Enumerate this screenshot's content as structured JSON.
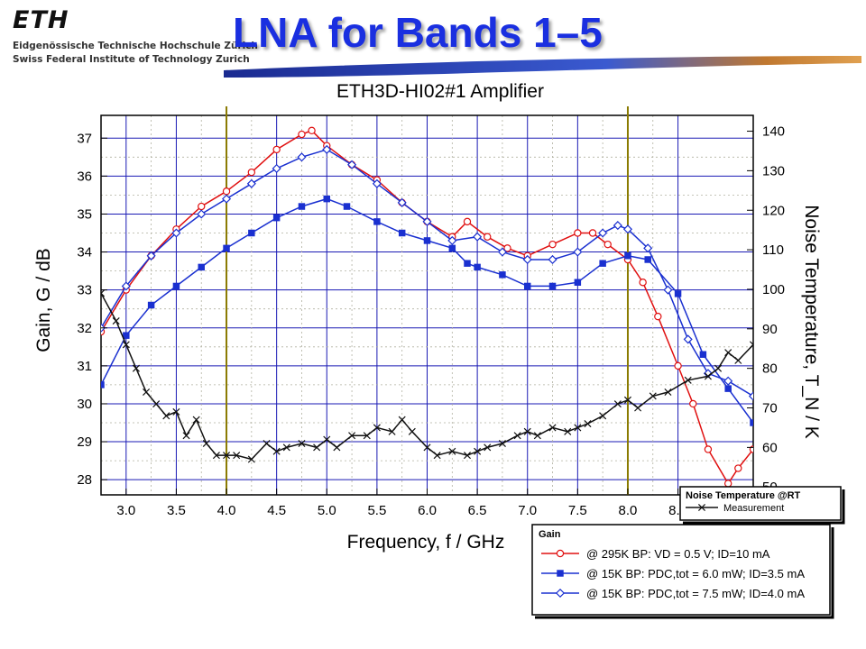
{
  "header": {
    "logo_text": "ETH",
    "institution_line1": "Eidgenössische Technische Hochschule Zürich",
    "institution_line2": "Swiss Federal Institute of Technology Zurich",
    "slide_title": "LNA for Bands 1–5"
  },
  "colors": {
    "title": "#1a2fe0",
    "grid": "#1a1ab4",
    "marker_lines": "#8a7a00",
    "swoosh": "#2a3fb0"
  },
  "chart_data": {
    "type": "line",
    "title": "ETH3D-HI02#1 Amplifier",
    "xlabel": "Frequency, f / GHz",
    "ylabel": "Gain, G / dB",
    "y2label": "Noise Temperature, T_N / K",
    "x_ticks": [
      "3.0",
      "3.5",
      "4.0",
      "4.5",
      "5.0",
      "5.5",
      "6.0",
      "6.5",
      "7.0",
      "7.5",
      "8.0",
      "8.5"
    ],
    "y_ticks": [
      "28",
      "29",
      "30",
      "31",
      "32",
      "33",
      "34",
      "35",
      "36",
      "37"
    ],
    "y2_ticks": [
      "50",
      "60",
      "70",
      "80",
      "90",
      "100",
      "110",
      "120",
      "130",
      "140"
    ],
    "xlim": [
      2.75,
      9.25
    ],
    "ylim": [
      27.6,
      37.6
    ],
    "y2lim": [
      48,
      144
    ],
    "grid": true,
    "band_markers_x": [
      4.0,
      8.0
    ],
    "gain_legend_title": "Gain",
    "noise_legend_title": "Noise Temperature @RT",
    "series": [
      {
        "name": "@ 295K BP: VD = 0.5 V; ID=10 mA",
        "axis": "gain",
        "color": "#e01010",
        "marker": "circle",
        "x": [
          2.75,
          3.0,
          3.25,
          3.5,
          3.75,
          4.0,
          4.25,
          4.5,
          4.75,
          4.85,
          5.0,
          5.25,
          5.5,
          5.75,
          6.0,
          6.25,
          6.4,
          6.6,
          6.8,
          7.0,
          7.25,
          7.5,
          7.65,
          7.8,
          8.0,
          8.15,
          8.3,
          8.5,
          8.65,
          8.8,
          9.0,
          9.1,
          9.25
        ],
        "y": [
          31.9,
          33.0,
          33.9,
          34.6,
          35.2,
          35.6,
          36.1,
          36.7,
          37.1,
          37.2,
          36.8,
          36.3,
          35.9,
          35.3,
          34.8,
          34.4,
          34.8,
          34.4,
          34.1,
          33.9,
          34.2,
          34.5,
          34.5,
          34.2,
          33.8,
          33.2,
          32.3,
          31.0,
          30.0,
          28.8,
          27.9,
          28.3,
          28.8
        ]
      },
      {
        "name": "@ 15K BP: PDC,tot = 6.0 mW; ID=3.5 mA",
        "axis": "gain",
        "color": "#1a30d0",
        "marker": "square",
        "x": [
          2.75,
          3.0,
          3.25,
          3.5,
          3.75,
          4.0,
          4.25,
          4.5,
          4.75,
          5.0,
          5.2,
          5.5,
          5.75,
          6.0,
          6.25,
          6.4,
          6.5,
          6.75,
          7.0,
          7.25,
          7.5,
          7.75,
          8.0,
          8.2,
          8.5,
          8.75,
          9.0,
          9.25
        ],
        "y": [
          30.5,
          31.8,
          32.6,
          33.1,
          33.6,
          34.1,
          34.5,
          34.9,
          35.2,
          35.4,
          35.2,
          34.8,
          34.5,
          34.3,
          34.1,
          33.7,
          33.6,
          33.4,
          33.1,
          33.1,
          33.2,
          33.7,
          33.9,
          33.8,
          32.9,
          31.3,
          30.4,
          29.5
        ]
      },
      {
        "name": "@ 15K BP: PDC,tot = 7.5 mW; ID=4.0 mA",
        "axis": "gain",
        "color": "#1a30d0",
        "marker": "diamond",
        "x": [
          2.75,
          3.0,
          3.25,
          3.5,
          3.75,
          4.0,
          4.25,
          4.5,
          4.75,
          5.0,
          5.25,
          5.5,
          5.75,
          6.0,
          6.25,
          6.5,
          6.75,
          7.0,
          7.25,
          7.5,
          7.75,
          7.9,
          8.0,
          8.2,
          8.4,
          8.6,
          8.8,
          9.0,
          9.25
        ],
        "y": [
          32.0,
          33.1,
          33.9,
          34.5,
          35.0,
          35.4,
          35.8,
          36.2,
          36.5,
          36.7,
          36.3,
          35.8,
          35.3,
          34.8,
          34.3,
          34.4,
          34.0,
          33.8,
          33.8,
          34.0,
          34.5,
          34.7,
          34.6,
          34.1,
          33.0,
          31.7,
          30.8,
          30.6,
          30.2
        ]
      },
      {
        "name": "Measurement",
        "axis": "noise",
        "color": "#111111",
        "marker": "x",
        "x": [
          2.75,
          2.9,
          3.0,
          3.1,
          3.2,
          3.3,
          3.4,
          3.5,
          3.6,
          3.7,
          3.8,
          3.9,
          4.0,
          4.1,
          4.25,
          4.4,
          4.5,
          4.6,
          4.75,
          4.9,
          5.0,
          5.1,
          5.25,
          5.4,
          5.5,
          5.65,
          5.75,
          5.85,
          6.0,
          6.1,
          6.25,
          6.4,
          6.5,
          6.6,
          6.75,
          6.9,
          7.0,
          7.1,
          7.25,
          7.4,
          7.5,
          7.6,
          7.75,
          7.9,
          8.0,
          8.1,
          8.25,
          8.4,
          8.6,
          8.8,
          8.9,
          9.0,
          9.1,
          9.25
        ],
        "y": [
          99,
          92,
          86,
          80,
          74,
          71,
          68,
          69,
          63,
          67,
          61,
          58,
          58,
          58,
          57,
          61,
          59,
          60,
          61,
          60,
          62,
          60,
          63,
          63,
          65,
          64,
          67,
          64,
          60,
          58,
          59,
          58,
          59,
          60,
          61,
          63,
          64,
          63,
          65,
          64,
          65,
          66,
          68,
          71,
          72,
          70,
          73,
          74,
          77,
          78,
          80,
          84,
          82,
          86
        ]
      }
    ]
  }
}
